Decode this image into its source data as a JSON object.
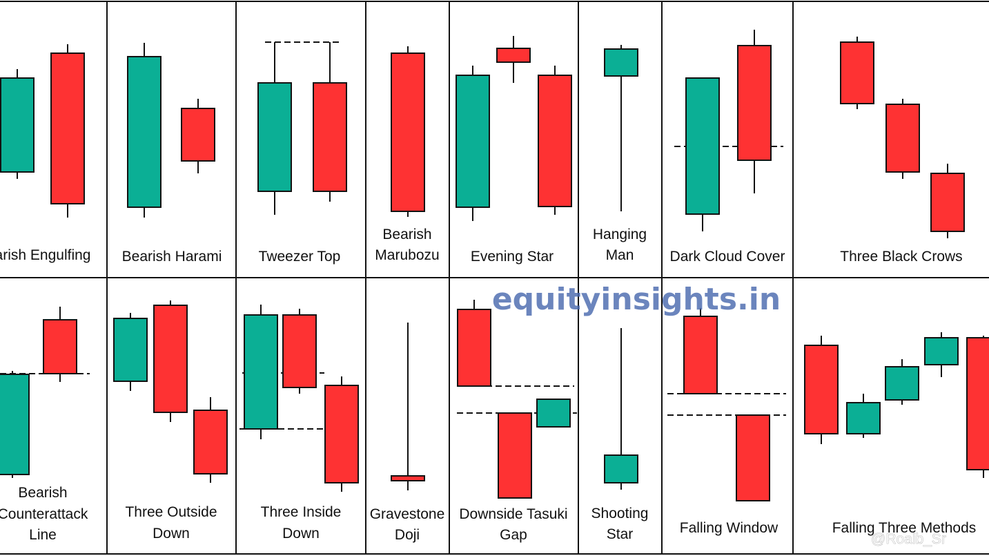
{
  "colors": {
    "bull": "#0baf95",
    "bear": "#fe3233",
    "grid": "#111111",
    "outline": "#111111",
    "watermark": "#4a6aae"
  },
  "watermark": {
    "text": "equityinsights.in",
    "corner_text": "@Roaib_Sr"
  },
  "patterns": [
    {
      "id": "bearish-engulfing",
      "title": [
        "arish Engulfing"
      ]
    },
    {
      "id": "bearish-harami",
      "title": [
        "Bearish Harami"
      ]
    },
    {
      "id": "tweezer-top",
      "title": [
        "Tweezer Top"
      ]
    },
    {
      "id": "bearish-marubozu",
      "title": [
        "Bearish",
        "Marubozu"
      ]
    },
    {
      "id": "evening-star",
      "title": [
        "Evening Star"
      ]
    },
    {
      "id": "hanging-man",
      "title": [
        "Hanging",
        "Man"
      ]
    },
    {
      "id": "dark-cloud-cover",
      "title": [
        "Dark Cloud Cover"
      ]
    },
    {
      "id": "three-black-crows",
      "title": [
        "Three Black Crows"
      ]
    },
    {
      "id": "bearish-counterattack-line",
      "title": [
        "Bearish",
        "Counterattack",
        "Line"
      ]
    },
    {
      "id": "three-outside-down",
      "title": [
        "Three Outside",
        "Down"
      ]
    },
    {
      "id": "three-inside-down",
      "title": [
        "Three Inside",
        "Down"
      ]
    },
    {
      "id": "gravestone-doji",
      "title": [
        "Gravestone",
        "Doji"
      ]
    },
    {
      "id": "downside-tasuki-gap",
      "title": [
        "Downside Tasuki",
        "Gap"
      ]
    },
    {
      "id": "shooting-star",
      "title": [
        "Shooting",
        "Star"
      ]
    },
    {
      "id": "falling-window",
      "title": [
        "Falling Window"
      ]
    },
    {
      "id": "falling-three-methods",
      "title": [
        "Falling Three Methods"
      ]
    }
  ]
}
